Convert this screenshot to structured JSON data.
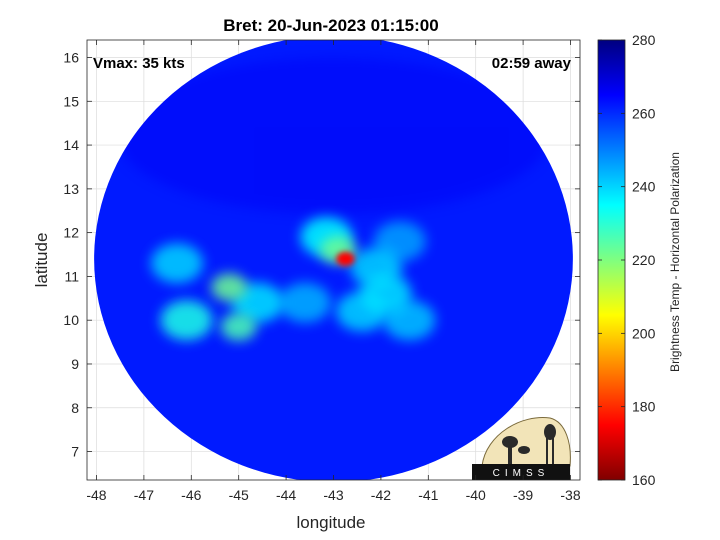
{
  "chart_data": {
    "type": "heatmap",
    "title": "Bret: 20-Jun-2023 01:15:00",
    "xlabel": "longitude",
    "ylabel": "latitude",
    "xlim": [
      -48.2,
      -37.8
    ],
    "ylim": [
      6.35,
      16.4
    ],
    "xticks": [
      -48,
      -47,
      -46,
      -45,
      -44,
      -43,
      -42,
      -41,
      -40,
      -39,
      -38
    ],
    "yticks": [
      7,
      8,
      9,
      10,
      11,
      12,
      13,
      14,
      15,
      16
    ],
    "grid": true,
    "annotations": {
      "left": "Vmax: 35 kts",
      "right": "02:59 away"
    },
    "colorbar": {
      "label": "Brightness Temp - Horizontal Polarization",
      "ticks": [
        160,
        180,
        200,
        220,
        240,
        260,
        280
      ],
      "range": [
        160,
        280
      ]
    },
    "swath": {
      "center_lon": -43.0,
      "center_lat": 11.4,
      "half_width_lon": 5.05,
      "half_height_lat": 5.1,
      "background_temp": 262
    },
    "features": [
      {
        "lon": -42.75,
        "lat": 11.4,
        "temp": 175,
        "name": "core"
      },
      {
        "lon": -42.9,
        "lat": 11.6,
        "temp": 222
      },
      {
        "lon": -43.15,
        "lat": 11.9,
        "temp": 235
      },
      {
        "lon": -42.1,
        "lat": 11.2,
        "temp": 240
      },
      {
        "lon": -41.9,
        "lat": 10.6,
        "temp": 238
      },
      {
        "lon": -42.4,
        "lat": 10.2,
        "temp": 240
      },
      {
        "lon": -41.4,
        "lat": 10.0,
        "temp": 242
      },
      {
        "lon": -43.6,
        "lat": 10.4,
        "temp": 244
      },
      {
        "lon": -44.6,
        "lat": 10.4,
        "temp": 238
      },
      {
        "lon": -45.2,
        "lat": 10.75,
        "temp": 222
      },
      {
        "lon": -45.0,
        "lat": 9.85,
        "temp": 226
      },
      {
        "lon": -46.1,
        "lat": 10.0,
        "temp": 232
      },
      {
        "lon": -46.3,
        "lat": 11.3,
        "temp": 240
      },
      {
        "lon": -41.6,
        "lat": 11.8,
        "temp": 246
      }
    ]
  },
  "logo": {
    "text": "CIMSS"
  },
  "colors": {
    "background": "#1a4ee0",
    "axis": "#262626",
    "grid": "#dcdcdc"
  }
}
